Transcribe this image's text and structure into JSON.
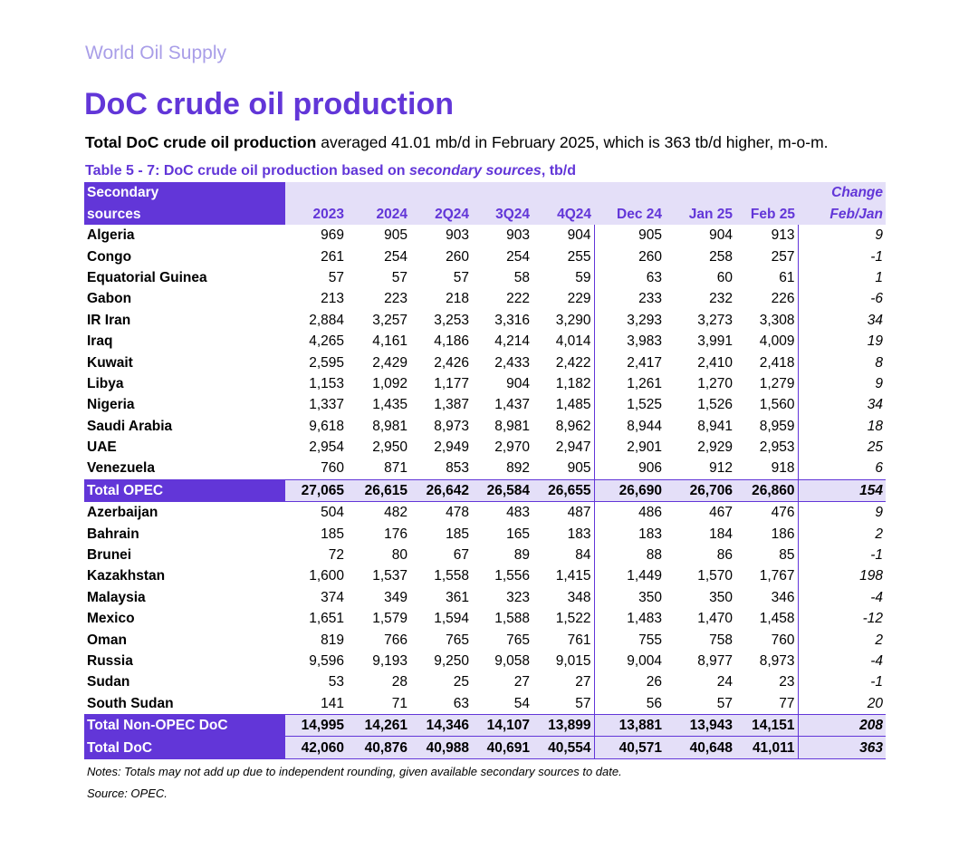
{
  "header": {
    "section": "World Oil Supply",
    "title": "DoC crude oil production",
    "lead_bold": "Total DoC crude oil production",
    "lead_rest": " averaged 41.01 mb/d in February 2025, which is 363 tb/d higher, m-o-m.",
    "caption_a": "Table 5 - 7: DoC crude oil production based on ",
    "caption_b": "secondary sources",
    "caption_c": ", tb/d"
  },
  "table": {
    "head_source_1": "Secondary",
    "head_source_2": "sources",
    "columns": [
      "2023",
      "2024",
      "2Q24",
      "3Q24",
      "4Q24",
      "Dec 24",
      "Jan 25",
      "Feb 25"
    ],
    "change_1": "Change",
    "change_2": "Feb/Jan",
    "rows": [
      {
        "name": "Algeria",
        "v": [
          "969",
          "905",
          "903",
          "903",
          "904",
          "905",
          "904",
          "913"
        ],
        "chg": "9"
      },
      {
        "name": "Congo",
        "v": [
          "261",
          "254",
          "260",
          "254",
          "255",
          "260",
          "258",
          "257"
        ],
        "chg": "-1"
      },
      {
        "name": "Equatorial Guinea",
        "v": [
          "57",
          "57",
          "57",
          "58",
          "59",
          "63",
          "60",
          "61"
        ],
        "chg": "1"
      },
      {
        "name": "Gabon",
        "v": [
          "213",
          "223",
          "218",
          "222",
          "229",
          "233",
          "232",
          "226"
        ],
        "chg": "-6"
      },
      {
        "name": "IR Iran",
        "v": [
          "2,884",
          "3,257",
          "3,253",
          "3,316",
          "3,290",
          "3,293",
          "3,273",
          "3,308"
        ],
        "chg": "34"
      },
      {
        "name": "Iraq",
        "v": [
          "4,265",
          "4,161",
          "4,186",
          "4,214",
          "4,014",
          "3,983",
          "3,991",
          "4,009"
        ],
        "chg": "19"
      },
      {
        "name": "Kuwait",
        "v": [
          "2,595",
          "2,429",
          "2,426",
          "2,433",
          "2,422",
          "2,417",
          "2,410",
          "2,418"
        ],
        "chg": "8"
      },
      {
        "name": "Libya",
        "v": [
          "1,153",
          "1,092",
          "1,177",
          "904",
          "1,182",
          "1,261",
          "1,270",
          "1,279"
        ],
        "chg": "9"
      },
      {
        "name": "Nigeria",
        "v": [
          "1,337",
          "1,435",
          "1,387",
          "1,437",
          "1,485",
          "1,525",
          "1,526",
          "1,560"
        ],
        "chg": "34"
      },
      {
        "name": "Saudi Arabia",
        "v": [
          "9,618",
          "8,981",
          "8,973",
          "8,981",
          "8,962",
          "8,944",
          "8,941",
          "8,959"
        ],
        "chg": "18"
      },
      {
        "name": "UAE",
        "v": [
          "2,954",
          "2,950",
          "2,949",
          "2,970",
          "2,947",
          "2,901",
          "2,929",
          "2,953"
        ],
        "chg": "25"
      },
      {
        "name": "Venezuela",
        "v": [
          "760",
          "871",
          "853",
          "892",
          "905",
          "906",
          "912",
          "918"
        ],
        "chg": "6"
      },
      {
        "name": "Total  OPEC",
        "v": [
          "27,065",
          "26,615",
          "26,642",
          "26,584",
          "26,655",
          "26,690",
          "26,706",
          "26,860"
        ],
        "chg": "154",
        "total": true
      },
      {
        "name": "Azerbaijan",
        "v": [
          "504",
          "482",
          "478",
          "483",
          "487",
          "486",
          "467",
          "476"
        ],
        "chg": "9"
      },
      {
        "name": "Bahrain",
        "v": [
          "185",
          "176",
          "185",
          "165",
          "183",
          "183",
          "184",
          "186"
        ],
        "chg": "2"
      },
      {
        "name": "Brunei",
        "v": [
          "72",
          "80",
          "67",
          "89",
          "84",
          "88",
          "86",
          "85"
        ],
        "chg": "-1"
      },
      {
        "name": "Kazakhstan",
        "v": [
          "1,600",
          "1,537",
          "1,558",
          "1,556",
          "1,415",
          "1,449",
          "1,570",
          "1,767"
        ],
        "chg": "198"
      },
      {
        "name": "Malaysia",
        "v": [
          "374",
          "349",
          "361",
          "323",
          "348",
          "350",
          "350",
          "346"
        ],
        "chg": "-4"
      },
      {
        "name": "Mexico",
        "v": [
          "1,651",
          "1,579",
          "1,594",
          "1,588",
          "1,522",
          "1,483",
          "1,470",
          "1,458"
        ],
        "chg": "-12"
      },
      {
        "name": "Oman",
        "v": [
          "819",
          "766",
          "765",
          "765",
          "761",
          "755",
          "758",
          "760"
        ],
        "chg": "2"
      },
      {
        "name": "Russia",
        "v": [
          "9,596",
          "9,193",
          "9,250",
          "9,058",
          "9,015",
          "9,004",
          "8,977",
          "8,973"
        ],
        "chg": "-4"
      },
      {
        "name": "Sudan",
        "v": [
          "53",
          "28",
          "25",
          "27",
          "27",
          "26",
          "24",
          "23"
        ],
        "chg": "-1"
      },
      {
        "name": "South Sudan",
        "v": [
          "141",
          "71",
          "63",
          "54",
          "57",
          "56",
          "57",
          "77"
        ],
        "chg": "20"
      },
      {
        "name": "Total Non-OPEC DoC",
        "v": [
          "14,995",
          "14,261",
          "14,346",
          "14,107",
          "13,899",
          "13,881",
          "13,943",
          "14,151"
        ],
        "chg": "208",
        "total": true
      },
      {
        "name": "Total DoC",
        "v": [
          "42,060",
          "40,876",
          "40,988",
          "40,691",
          "40,554",
          "40,571",
          "40,648",
          "41,011"
        ],
        "chg": "363",
        "total": true
      }
    ]
  },
  "footer": {
    "notes": "Notes: Totals may not add up due to independent rounding, given available secondary sources to date.",
    "source": "Source: OPEC."
  },
  "colors": {
    "accent": "#6236d8",
    "header_fill": "#e4dff8",
    "section_text": "#a99ee8"
  }
}
